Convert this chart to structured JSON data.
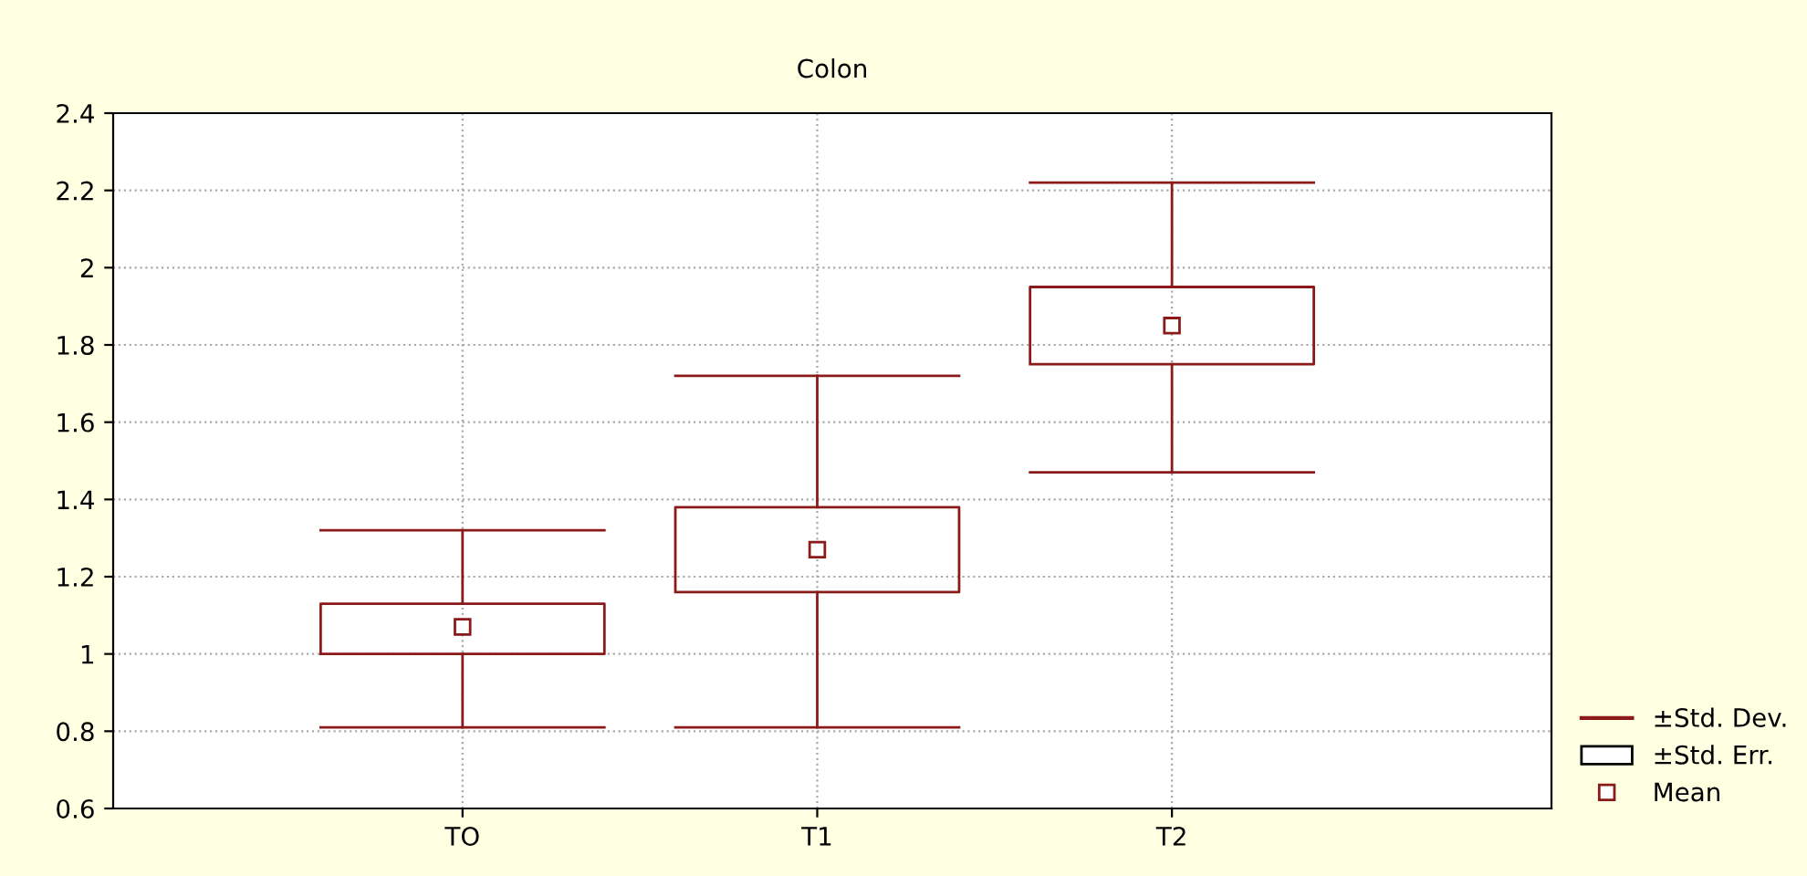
{
  "chart_data": {
    "type": "box",
    "title": "Colon",
    "categories": [
      "TO",
      "T1",
      "T2"
    ],
    "color": "#8b1a1a",
    "boxes": [
      {
        "low": 0.81,
        "q1": 1.0,
        "q3": 1.13,
        "high": 1.32,
        "mean": 1.07
      },
      {
        "low": 0.81,
        "q1": 1.16,
        "q3": 1.38,
        "high": 1.72,
        "mean": 1.27
      },
      {
        "low": 1.47,
        "q1": 1.75,
        "q3": 1.95,
        "high": 2.22,
        "mean": 1.85
      }
    ],
    "ylim": [
      0.6,
      2.4
    ],
    "yticks": [
      0.6,
      0.8,
      1,
      1.2,
      1.4,
      1.6,
      1.8,
      2,
      2.2,
      2.4
    ],
    "grid": true,
    "marker": "square",
    "annotations": [
      "±Std. Dev.",
      "±Std. Err.",
      "Mean"
    ]
  }
}
